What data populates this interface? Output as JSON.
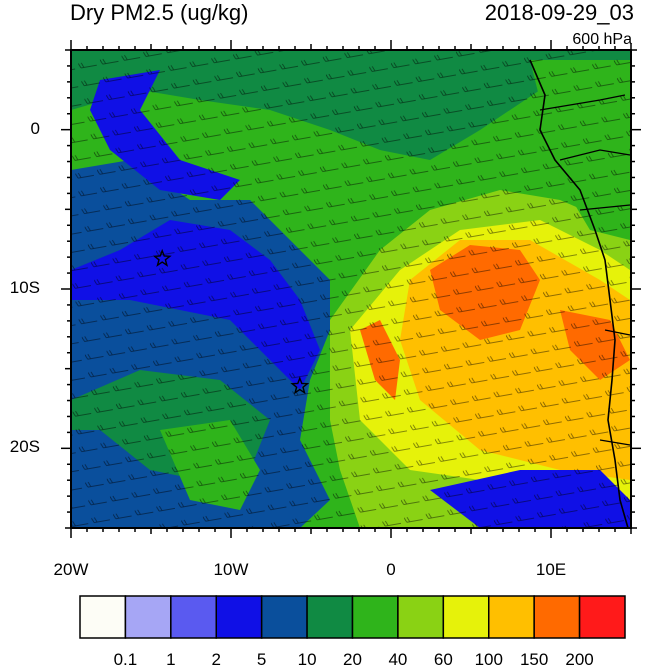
{
  "title_left": "Dry PM2.5 (ug/kg)",
  "title_right": "2018-09-29_03",
  "level": "600 hPa",
  "map": {
    "lon_range": [
      -20,
      15
    ],
    "lat_range": [
      -25,
      5
    ],
    "lat_labels": [
      "0",
      "10S",
      "20S"
    ],
    "lon_labels": [
      "20W",
      "10W",
      "0",
      "10E"
    ],
    "markers": [
      {
        "lon": -14.3,
        "lat": -8.1,
        "symbol": "star"
      },
      {
        "lon": -5.7,
        "lat": -16.1,
        "symbol": "star"
      }
    ]
  },
  "colorbar": {
    "labels": [
      "0.1",
      "1",
      "2",
      "5",
      "10",
      "20",
      "40",
      "60",
      "100",
      "150",
      "200"
    ],
    "colors": [
      "#fdfdf6",
      "#a6a6f5",
      "#5a5af0",
      "#1010e6",
      "#0a4f9c",
      "#108a43",
      "#2fb41b",
      "#8ad214",
      "#e6f20a",
      "#ffbf00",
      "#ff6a00",
      "#ff1a1a"
    ]
  }
}
